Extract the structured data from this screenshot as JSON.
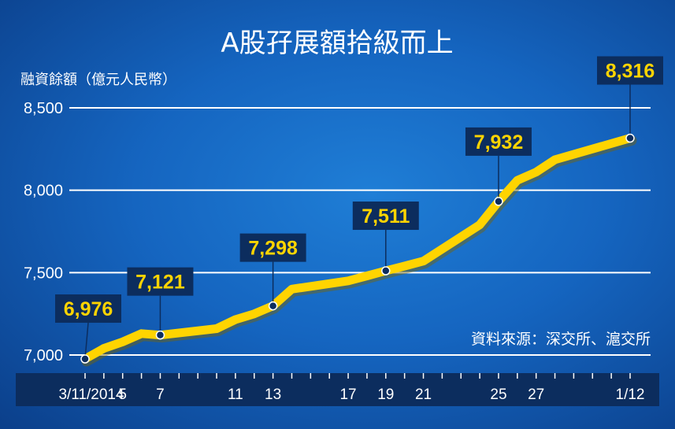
{
  "chart_data": {
    "type": "line",
    "title": "A股孖展額拾級而上",
    "ylabel": "融資餘額（億元人民幣）",
    "source": "資料來源：深交所、滬交所",
    "ylim": [
      7000,
      8500
    ],
    "yticks": [
      7000,
      7500,
      8000,
      8500
    ],
    "ytick_labels": [
      "7,000",
      "7,500",
      "8,000",
      "8,500"
    ],
    "xlim": [
      3,
      32
    ],
    "xticks": [
      3,
      5,
      7,
      11,
      13,
      17,
      19,
      21,
      25,
      27,
      32
    ],
    "xtick_labels": [
      "3/11/2014",
      "5",
      "7",
      "11",
      "13",
      "17",
      "19",
      "21",
      "25",
      "27",
      "1/12"
    ],
    "series": [
      {
        "x": [
          3,
          4,
          5,
          6,
          7,
          10,
          11,
          12,
          13,
          14,
          17,
          18,
          19,
          20,
          21,
          24,
          25,
          26,
          27,
          28,
          32
        ],
        "values": [
          6976,
          7040,
          7080,
          7130,
          7121,
          7160,
          7215,
          7250,
          7298,
          7400,
          7450,
          7480,
          7511,
          7540,
          7570,
          7790,
          7932,
          8060,
          8110,
          8185,
          8316
        ]
      }
    ],
    "data_labels": [
      {
        "x": 3,
        "y": 6976,
        "label": "6,976"
      },
      {
        "x": 7,
        "y": 7121,
        "label": "7,121"
      },
      {
        "x": 13,
        "y": 7298,
        "label": "7,298"
      },
      {
        "x": 19,
        "y": 7511,
        "label": "7,511"
      },
      {
        "x": 25,
        "y": 7932,
        "label": "7,932"
      },
      {
        "x": 32,
        "y": 8316,
        "label": "8,316"
      }
    ],
    "colors": {
      "background": "#1565c0",
      "line": "#ffd400",
      "label_box": "#0c2d5e",
      "label_text": "#ffd400",
      "grid": "#ffffff",
      "axis_band": "#0c2d5e"
    },
    "grid": true
  }
}
